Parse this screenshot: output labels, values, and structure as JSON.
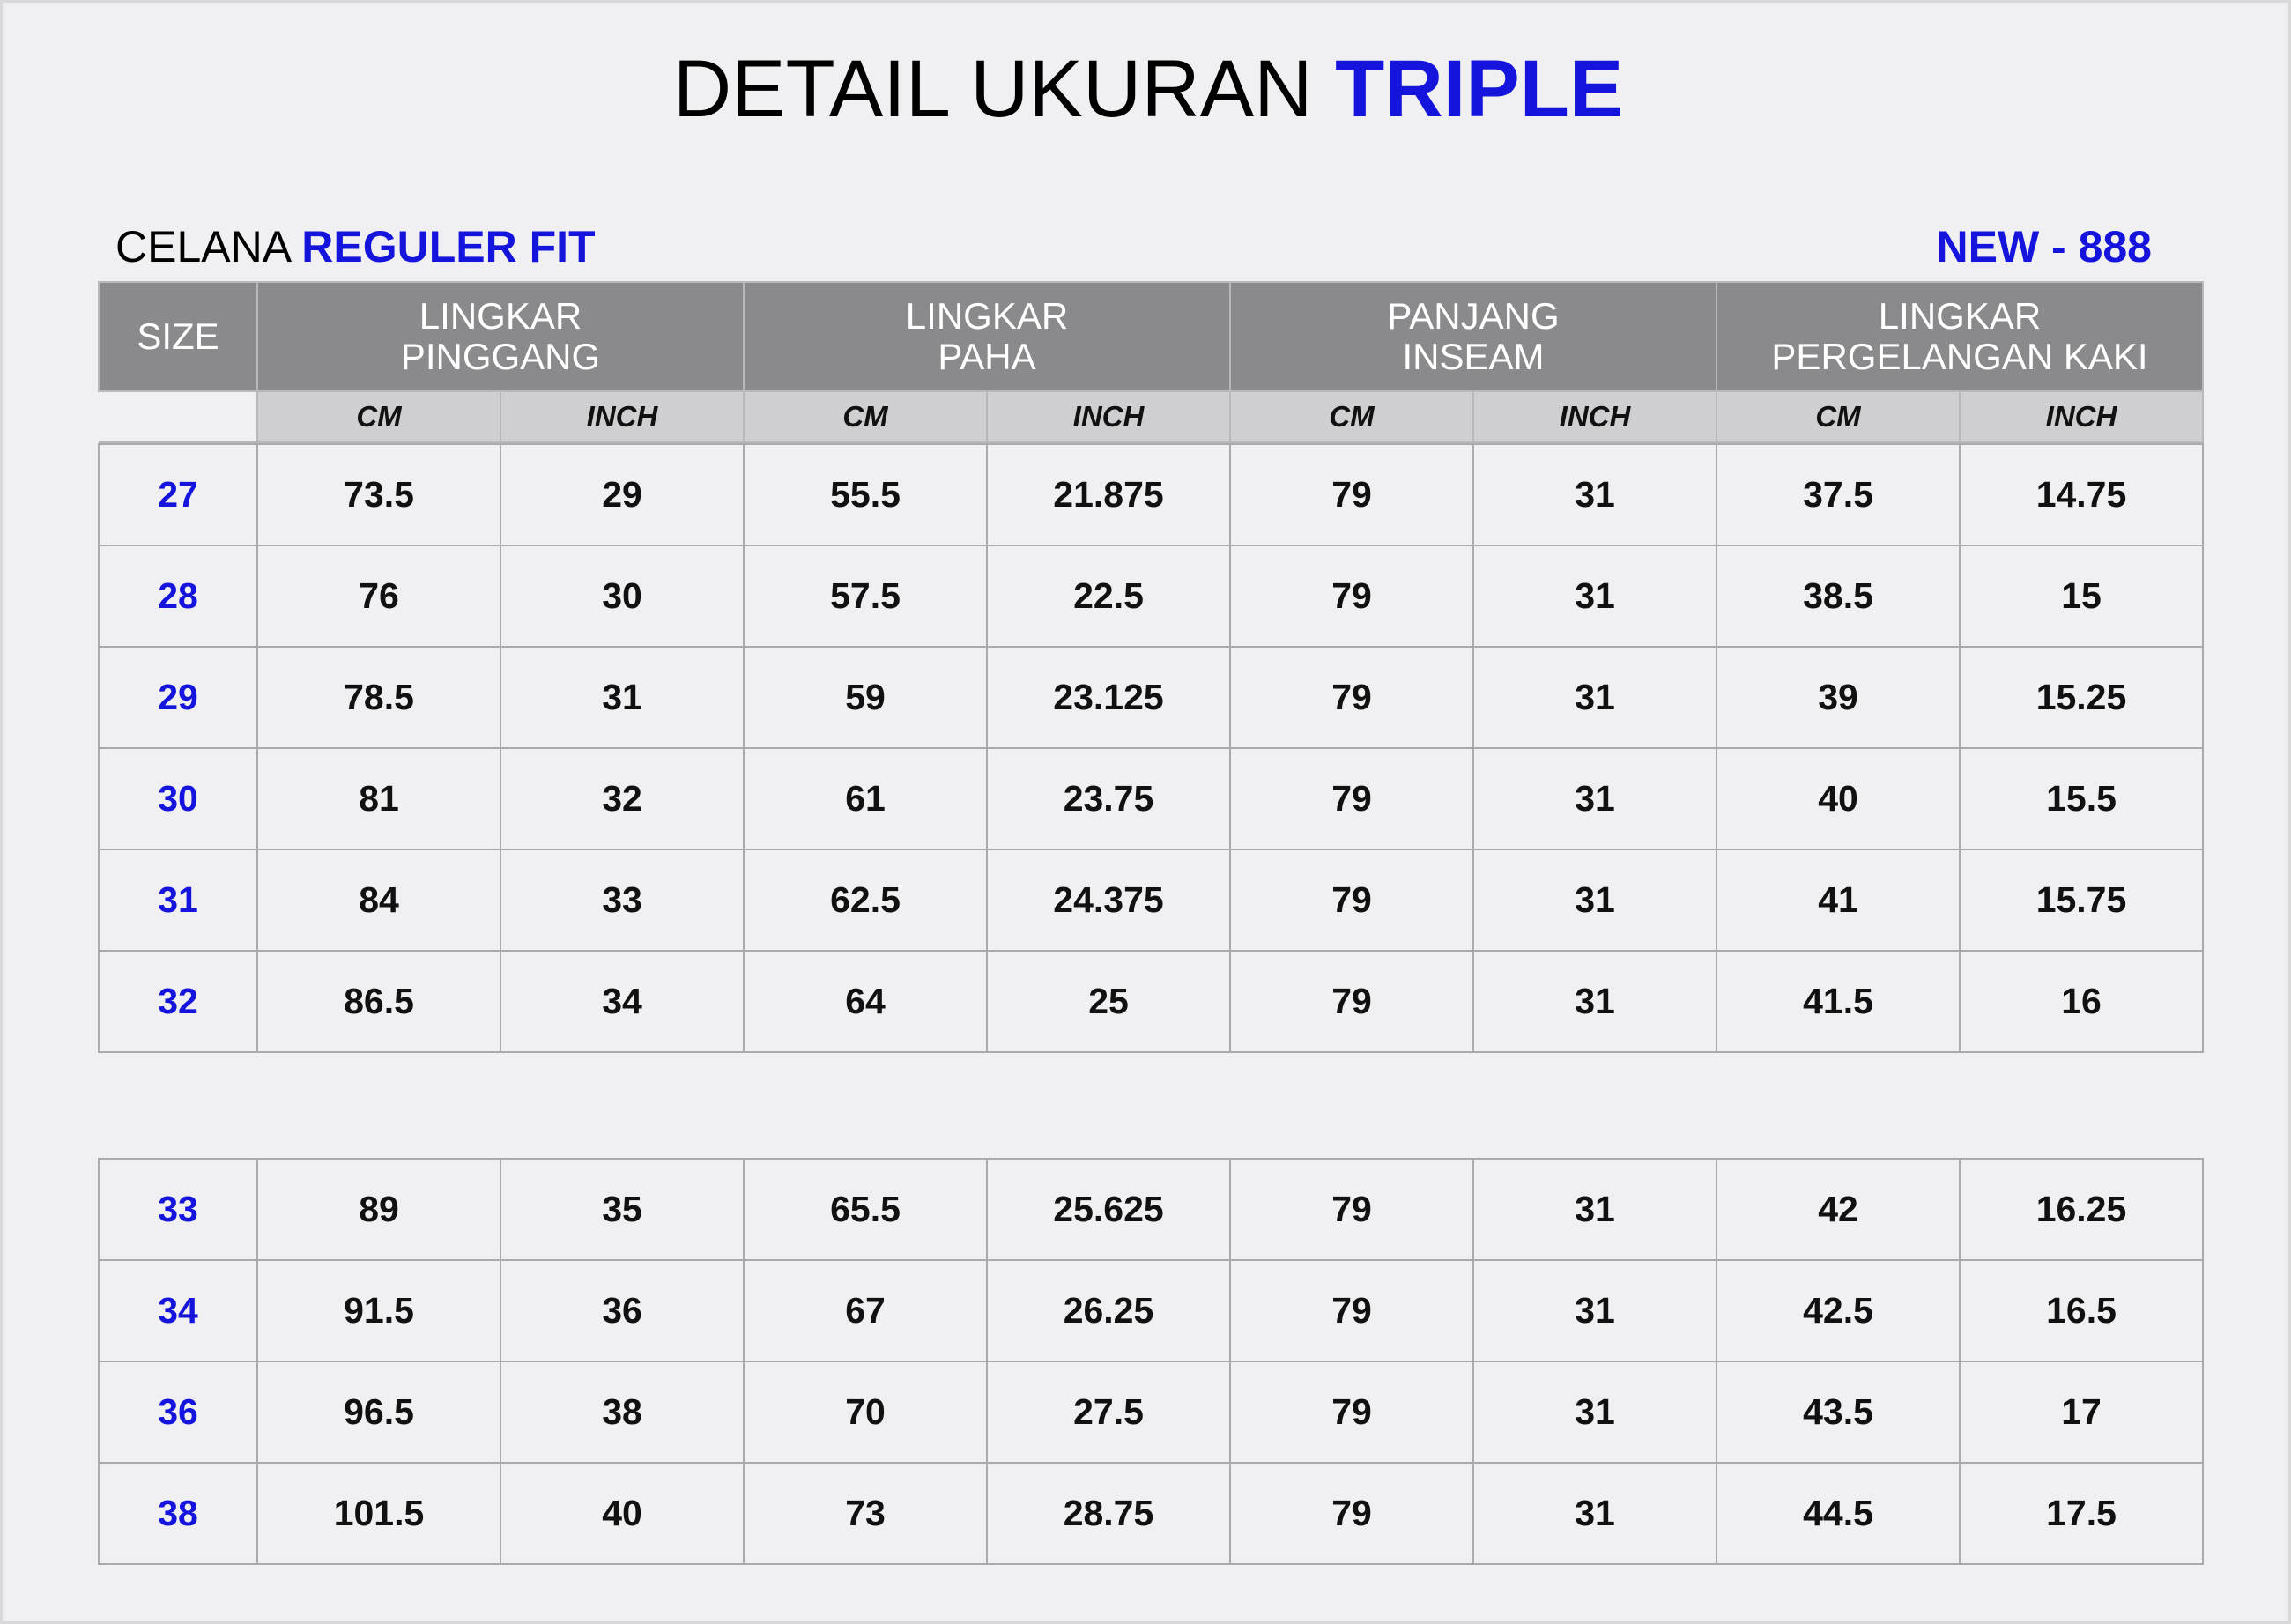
{
  "title": {
    "main": "DETAIL UKURAN",
    "accent": "TRIPLE"
  },
  "subtitle": {
    "main": "CELANA",
    "accent": "REGULER FIT"
  },
  "code": "NEW - 888",
  "headers": {
    "size": "SIZE",
    "groups": [
      {
        "line1": "LINGKAR",
        "line2": "PINGGANG"
      },
      {
        "line1": "LINGKAR",
        "line2": "PAHA"
      },
      {
        "line1": "PANJANG",
        "line2": "INSEAM"
      },
      {
        "line1": "LINGKAR",
        "line2": "PERGELANGAN KAKI"
      }
    ],
    "cm": "CM",
    "inch": "INCH"
  },
  "rows_top": [
    [
      "27",
      "73.5",
      "29",
      "55.5",
      "21.875",
      "79",
      "31",
      "37.5",
      "14.75"
    ],
    [
      "28",
      "76",
      "30",
      "57.5",
      "22.5",
      "79",
      "31",
      "38.5",
      "15"
    ],
    [
      "29",
      "78.5",
      "31",
      "59",
      "23.125",
      "79",
      "31",
      "39",
      "15.25"
    ],
    [
      "30",
      "81",
      "32",
      "61",
      "23.75",
      "79",
      "31",
      "40",
      "15.5"
    ],
    [
      "31",
      "84",
      "33",
      "62.5",
      "24.375",
      "79",
      "31",
      "41",
      "15.75"
    ],
    [
      "32",
      "86.5",
      "34",
      "64",
      "25",
      "79",
      "31",
      "41.5",
      "16"
    ]
  ],
  "rows_bottom": [
    [
      "33",
      "89",
      "35",
      "65.5",
      "25.625",
      "79",
      "31",
      "42",
      "16.25"
    ],
    [
      "34",
      "91.5",
      "36",
      "67",
      "26.25",
      "79",
      "31",
      "42.5",
      "16.5"
    ],
    [
      "36",
      "96.5",
      "38",
      "70",
      "27.5",
      "79",
      "31",
      "43.5",
      "17"
    ],
    [
      "38",
      "101.5",
      "40",
      "73",
      "28.75",
      "79",
      "31",
      "44.5",
      "17.5"
    ]
  ]
}
